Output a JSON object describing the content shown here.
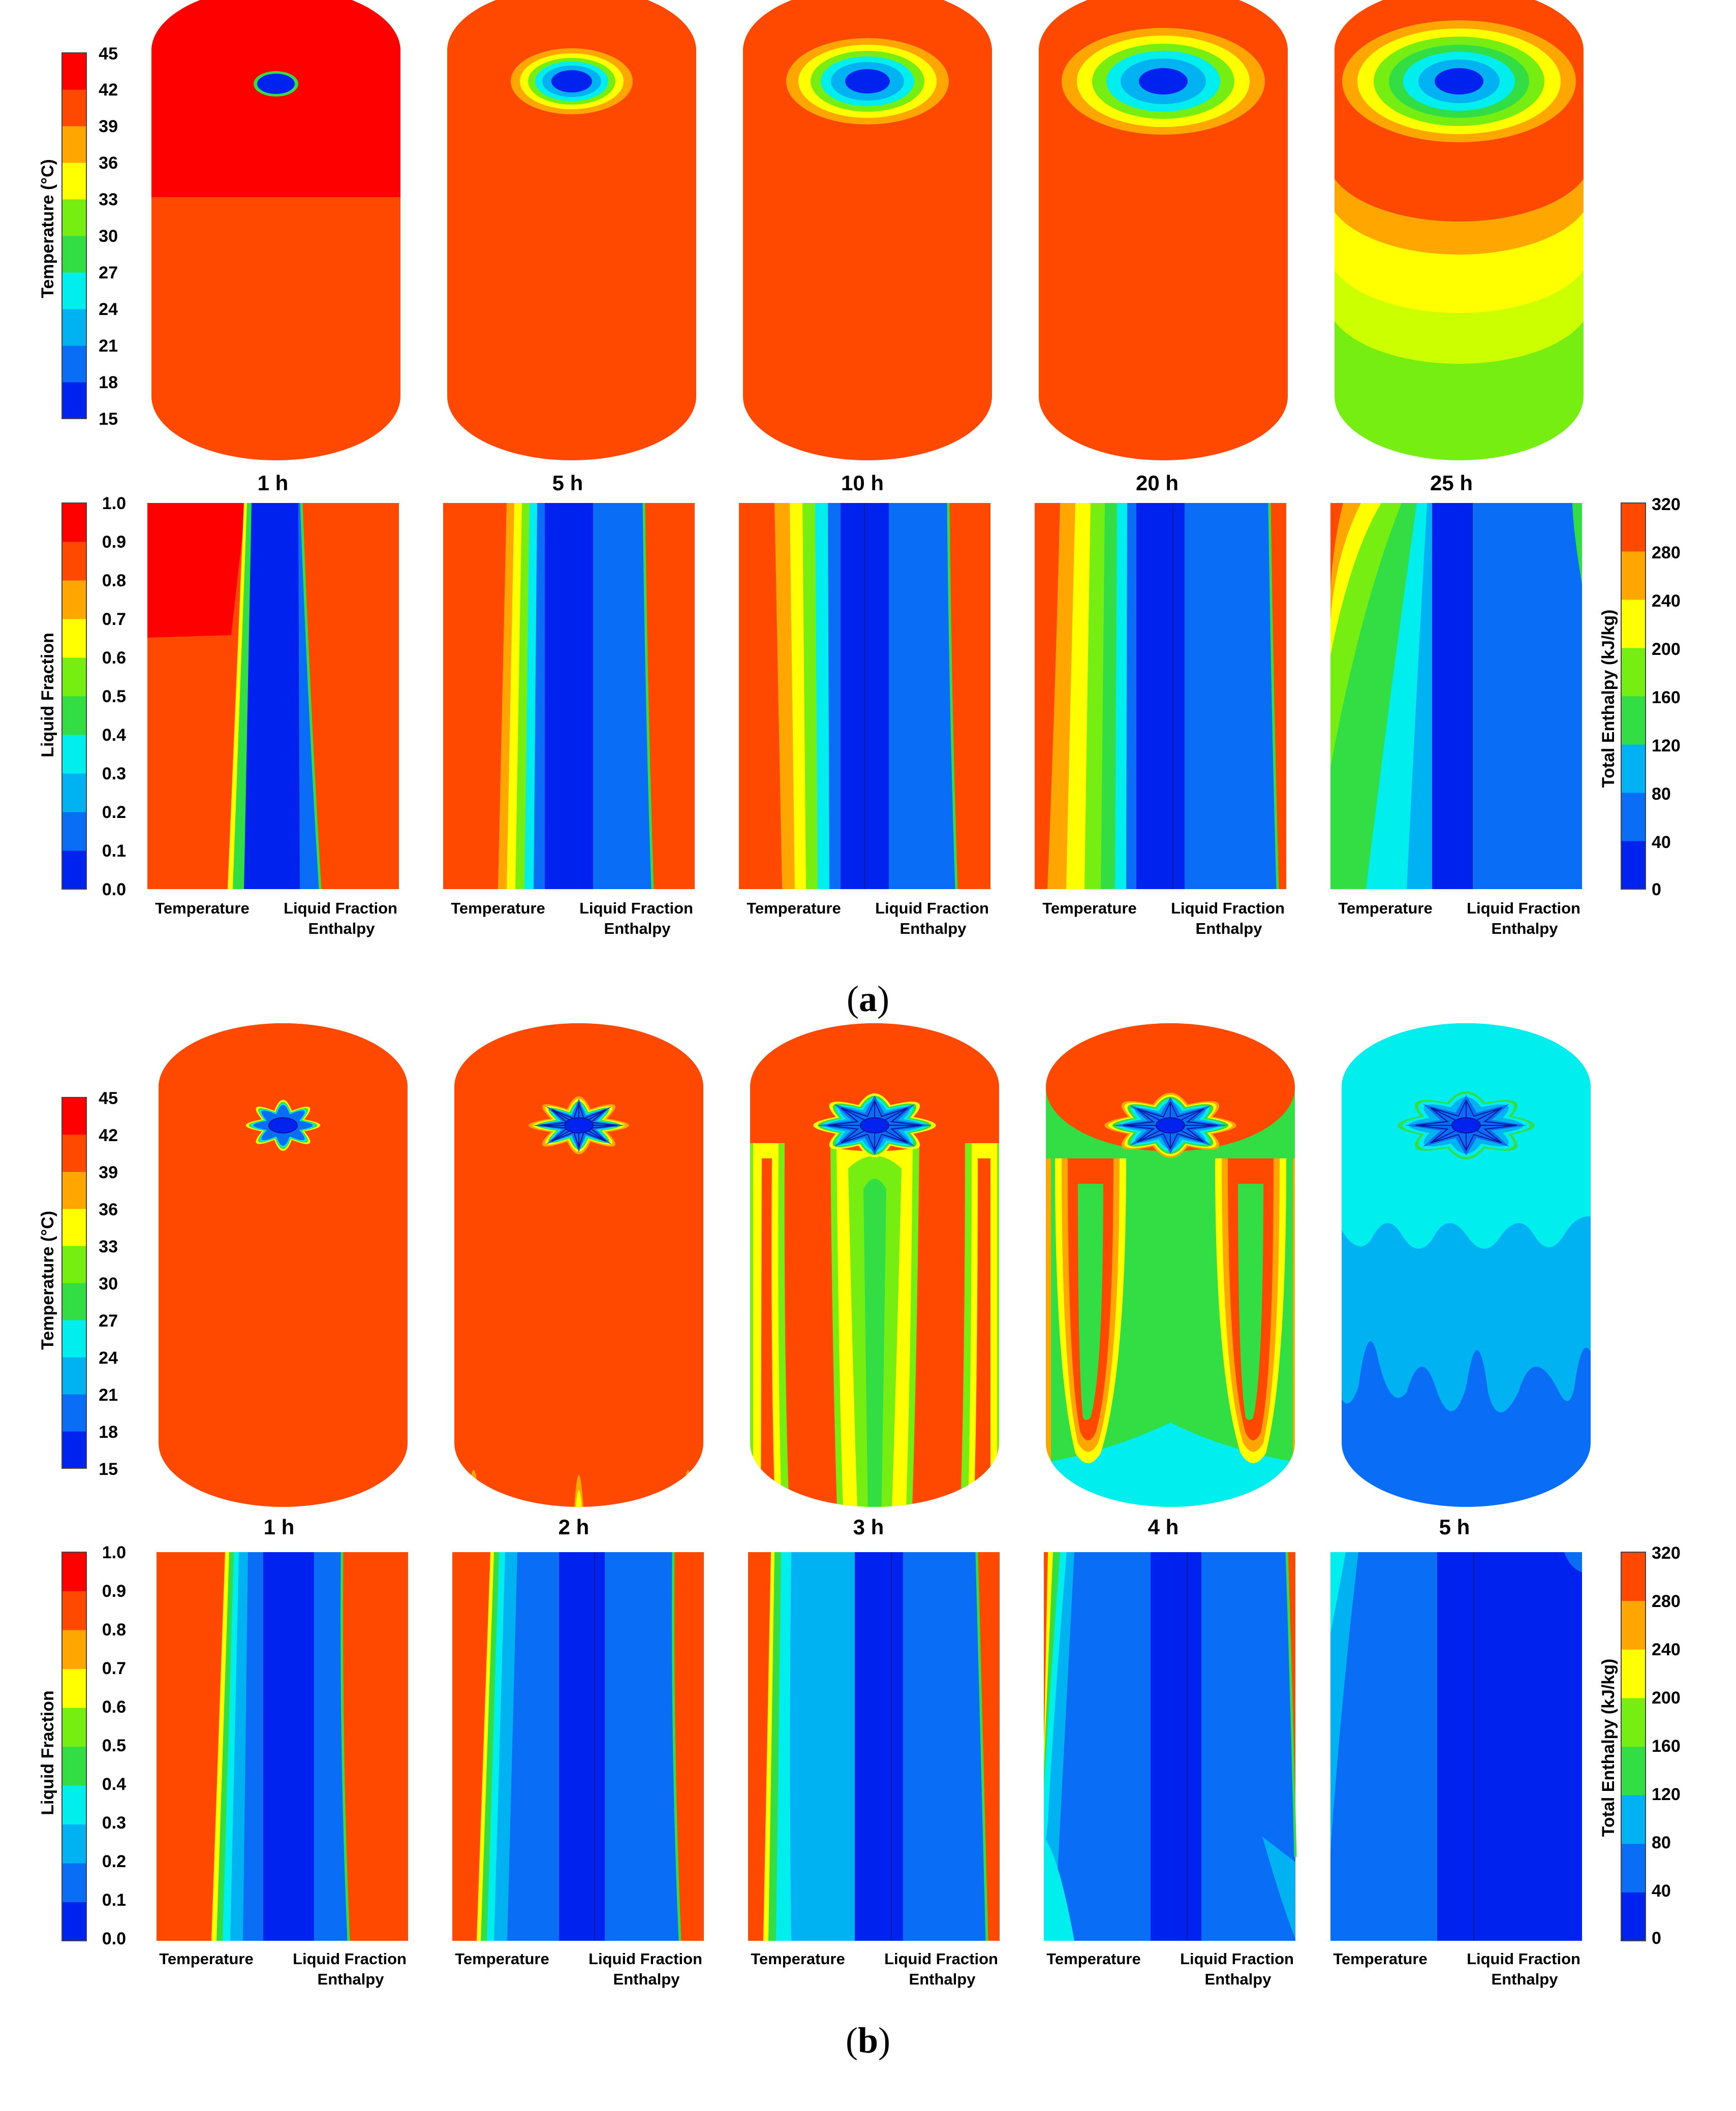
{
  "palette": [
    "#0022ee",
    "#0a6df5",
    "#00b2f2",
    "#00eeee",
    "#33dd44",
    "#77ee11",
    "#ffff00",
    "#ffa600",
    "#ff4800",
    "#ff0000"
  ],
  "legends": {
    "temperature": {
      "title": "Temperature (°C)",
      "ticks": [
        "45",
        "42",
        "39",
        "36",
        "33",
        "30",
        "27",
        "24",
        "21",
        "18",
        "15"
      ]
    },
    "liquid_fraction": {
      "title": "Liquid Fraction",
      "ticks": [
        "1.0",
        "0.9",
        "0.8",
        "0.7",
        "0.6",
        "0.5",
        "0.4",
        "0.3",
        "0.2",
        "0.1",
        "0.0"
      ]
    },
    "enthalpy": {
      "title": "Total Enthalpy (kJ/kg)",
      "ticks": [
        "320",
        "280",
        "240",
        "200",
        "160",
        "120",
        "80",
        "40",
        "0"
      ]
    }
  },
  "section_labels": {
    "temperature": "Temperature",
    "liquid_fraction": "Liquid Fraction",
    "enthalpy": "Enthalpy"
  },
  "panel_a": {
    "caption_open": "(",
    "caption_letter": "a",
    "caption_close": ")",
    "times": [
      "1 h",
      "5 h",
      "10 h",
      "20 h",
      "25 h"
    ]
  },
  "panel_b": {
    "caption_open": "(",
    "caption_letter": "b",
    "caption_close": ")",
    "times": [
      "1 h",
      "2 h",
      "3 h",
      "4 h",
      "5 h"
    ]
  }
}
